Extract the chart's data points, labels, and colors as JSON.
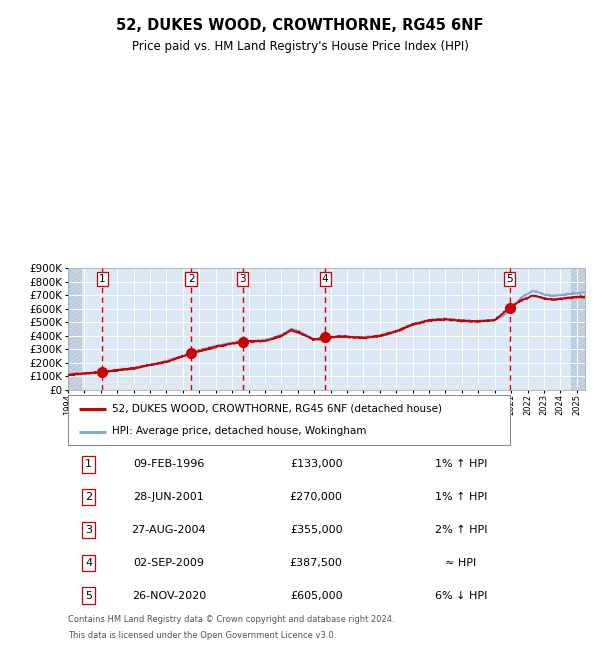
{
  "title": "52, DUKES WOOD, CROWTHORNE, RG45 6NF",
  "subtitle": "Price paid vs. HM Land Registry's House Price Index (HPI)",
  "legend_line1": "52, DUKES WOOD, CROWTHORNE, RG45 6NF (detached house)",
  "legend_line2": "HPI: Average price, detached house, Wokingham",
  "footer_line1": "Contains HM Land Registry data © Crown copyright and database right 2024.",
  "footer_line2": "This data is licensed under the Open Government Licence v3.0.",
  "sales": [
    {
      "num": 1,
      "date": "09-FEB-1996",
      "price": 133000,
      "year": 1996.1,
      "hpi_rel": "1% ↑ HPI"
    },
    {
      "num": 2,
      "date": "28-JUN-2001",
      "price": 270000,
      "year": 2001.5,
      "hpi_rel": "1% ↑ HPI"
    },
    {
      "num": 3,
      "date": "27-AUG-2004",
      "price": 355000,
      "year": 2004.65,
      "hpi_rel": "2% ↑ HPI"
    },
    {
      "num": 4,
      "date": "02-SEP-2009",
      "price": 387500,
      "year": 2009.67,
      "hpi_rel": "≈ HPI"
    },
    {
      "num": 5,
      "date": "26-NOV-2020",
      "price": 605000,
      "year": 2020.9,
      "hpi_rel": "6% ↓ HPI"
    }
  ],
  "hpi_line_color": "#7aadd4",
  "price_line_color": "#cc0000",
  "sale_dot_color": "#cc0000",
  "vline_color": "#cc0000",
  "plot_bg_color": "#dce9f5",
  "grid_color": "#ffffff",
  "xmin": 1994,
  "xmax": 2025.5,
  "ymin": 0,
  "ymax": 900000,
  "yticks": [
    0,
    100000,
    200000,
    300000,
    400000,
    500000,
    600000,
    700000,
    800000,
    900000
  ],
  "hpi_anchors": [
    [
      1994.0,
      118000
    ],
    [
      1995.0,
      122000
    ],
    [
      1996.0,
      130000
    ],
    [
      1997.0,
      145000
    ],
    [
      1998.0,
      162000
    ],
    [
      1999.0,
      183000
    ],
    [
      2000.0,
      215000
    ],
    [
      2001.0,
      250000
    ],
    [
      2001.5,
      268000
    ],
    [
      2002.0,
      295000
    ],
    [
      2003.0,
      325000
    ],
    [
      2004.0,
      348000
    ],
    [
      2004.5,
      358000
    ],
    [
      2005.0,
      358000
    ],
    [
      2006.0,
      368000
    ],
    [
      2007.0,
      405000
    ],
    [
      2007.6,
      450000
    ],
    [
      2008.0,
      435000
    ],
    [
      2008.5,
      405000
    ],
    [
      2009.0,
      375000
    ],
    [
      2009.5,
      370000
    ],
    [
      2010.0,
      385000
    ],
    [
      2010.5,
      398000
    ],
    [
      2011.0,
      395000
    ],
    [
      2011.5,
      388000
    ],
    [
      2012.0,
      388000
    ],
    [
      2013.0,
      402000
    ],
    [
      2014.0,
      435000
    ],
    [
      2015.0,
      488000
    ],
    [
      2016.0,
      515000
    ],
    [
      2017.0,
      525000
    ],
    [
      2017.5,
      518000
    ],
    [
      2018.0,
      512000
    ],
    [
      2018.5,
      508000
    ],
    [
      2019.0,
      508000
    ],
    [
      2019.5,
      512000
    ],
    [
      2020.0,
      518000
    ],
    [
      2020.5,
      545000
    ],
    [
      2021.0,
      598000
    ],
    [
      2021.3,
      640000
    ],
    [
      2021.6,
      680000
    ],
    [
      2022.0,
      710000
    ],
    [
      2022.3,
      730000
    ],
    [
      2022.6,
      725000
    ],
    [
      2023.0,
      705000
    ],
    [
      2023.5,
      695000
    ],
    [
      2024.0,
      700000
    ],
    [
      2024.5,
      708000
    ],
    [
      2025.0,
      715000
    ],
    [
      2025.5,
      720000
    ]
  ],
  "price_anchors": [
    [
      1994.0,
      112000
    ],
    [
      1996.1,
      133000
    ],
    [
      1998.0,
      160000
    ],
    [
      2000.0,
      208000
    ],
    [
      2001.5,
      270000
    ],
    [
      2003.0,
      318000
    ],
    [
      2004.0,
      342000
    ],
    [
      2004.65,
      355000
    ],
    [
      2006.0,
      362000
    ],
    [
      2007.0,
      398000
    ],
    [
      2007.6,
      442000
    ],
    [
      2008.0,
      428000
    ],
    [
      2008.5,
      398000
    ],
    [
      2009.0,
      372000
    ],
    [
      2009.67,
      387500
    ],
    [
      2010.5,
      395000
    ],
    [
      2011.0,
      392000
    ],
    [
      2012.0,
      385000
    ],
    [
      2013.0,
      398000
    ],
    [
      2014.0,
      432000
    ],
    [
      2015.0,
      482000
    ],
    [
      2016.0,
      512000
    ],
    [
      2017.0,
      522000
    ],
    [
      2017.5,
      515000
    ],
    [
      2018.0,
      510000
    ],
    [
      2019.0,
      506000
    ],
    [
      2020.0,
      515000
    ],
    [
      2020.9,
      605000
    ],
    [
      2021.2,
      630000
    ],
    [
      2021.5,
      655000
    ],
    [
      2022.0,
      680000
    ],
    [
      2022.3,
      698000
    ],
    [
      2022.6,
      692000
    ],
    [
      2023.0,
      675000
    ],
    [
      2023.5,
      668000
    ],
    [
      2024.0,
      672000
    ],
    [
      2024.5,
      680000
    ],
    [
      2025.0,
      685000
    ],
    [
      2025.5,
      688000
    ]
  ]
}
